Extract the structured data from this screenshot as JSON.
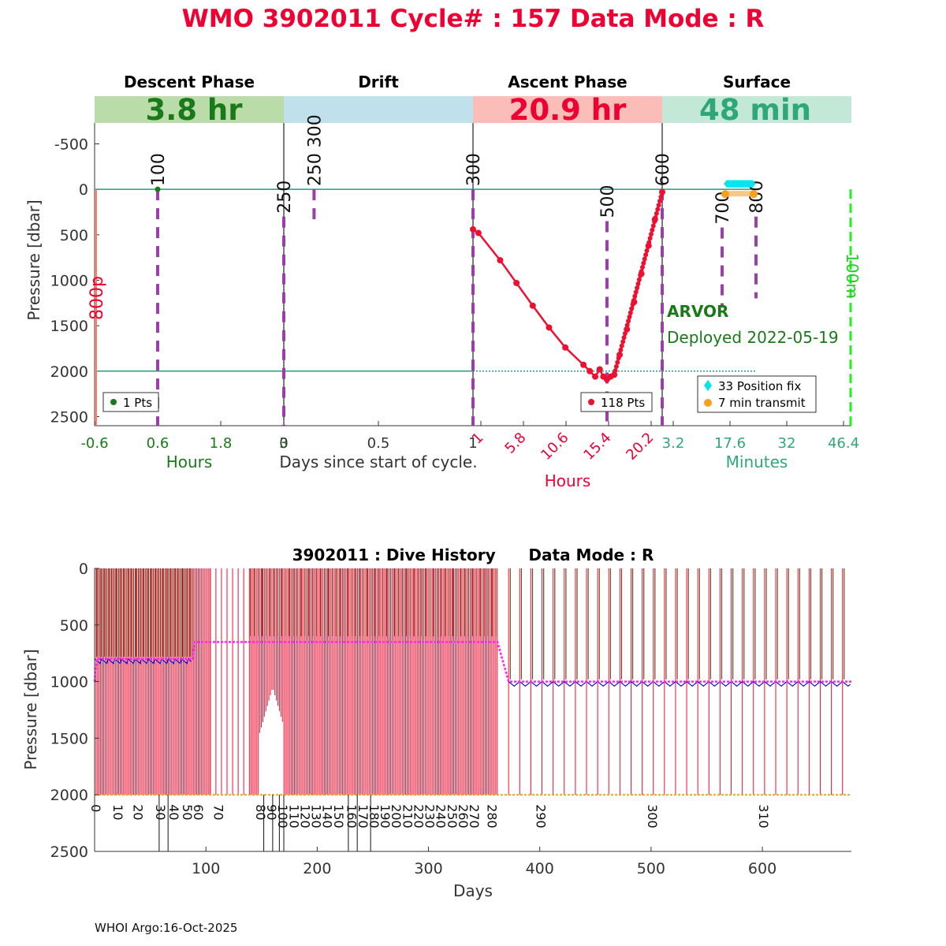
{
  "title": "WMO 3902011   Cycle# : 157   Data Mode : R",
  "colors": {
    "title": "#ee0033",
    "descent": "#1a7a1a",
    "descent_bg": "#b9dca9",
    "drift_bg": "#c0e0ec",
    "ascent": "#ee0033",
    "ascent_bg": "#fbbdb8",
    "surface": "#2ea77a",
    "surface_bg": "#c4e8d8",
    "marker": "#9a3ea8",
    "teal": "#2a9a80",
    "salmon": "#f08070",
    "cyan": "#00e5ee",
    "orange": "#f5a020",
    "green_dash": "#22ee22",
    "magenta": "#ff22ff",
    "blue": "#1010cc",
    "darkgreen": "#6a4a20",
    "red": "#ee1030"
  },
  "top_panel": {
    "ylabel": "Pressure [dbar]",
    "y_ticks": [
      "-500",
      "0",
      "500",
      "1000",
      "1500",
      "2000",
      "2500"
    ],
    "y_tick_values": [
      -500,
      0,
      500,
      1000,
      1500,
      2000,
      2500
    ],
    "ylim": [
      -730,
      2600
    ],
    "xlabel": "Days since start of cycle.",
    "vertical_label_800p": "800p",
    "vertical_label_100m": "100m",
    "phases": {
      "descent": {
        "title": "Descent Phase",
        "duration": "3.8 hr",
        "xticks": [
          "-0.6",
          "0.6",
          "1.8",
          "3"
        ],
        "xlim": [
          -0.6,
          3
        ],
        "units": "Hours",
        "legend": "1 Pts",
        "points": [
          [
            0.6,
            0
          ]
        ],
        "markers": [
          {
            "label": "100",
            "x": 0.6,
            "p_top": 0,
            "p_bottom": 2600
          }
        ]
      },
      "drift": {
        "title": "Drift",
        "xticks": [
          "0",
          "0.5",
          "1"
        ],
        "xlim": [
          0,
          1
        ],
        "markers": [
          {
            "label": "250",
            "x": 0.0,
            "p_top": 300,
            "p_bottom": 2600
          },
          {
            "label": "250 300",
            "x": 0.16,
            "p_top": 0,
            "p_bottom": 400
          }
        ]
      },
      "ascent": {
        "title": "Ascent Phase",
        "duration": "20.9 hr",
        "xticks": [
          "1",
          "5.8",
          "10.6",
          "15.4",
          "20.2"
        ],
        "xlim": [
          0,
          20.9
        ],
        "units": "Hours",
        "legend": "118 Pts",
        "points": [
          [
            0,
            440
          ],
          [
            0.6,
            480
          ],
          [
            3.0,
            780
          ],
          [
            4.8,
            1030
          ],
          [
            6.6,
            1280
          ],
          [
            8.4,
            1520
          ],
          [
            10.2,
            1740
          ],
          [
            12.2,
            1930
          ],
          [
            12.9,
            2000
          ],
          [
            13.5,
            2060
          ],
          [
            14.0,
            1980
          ],
          [
            14.4,
            2060
          ],
          [
            14.8,
            2090
          ],
          [
            15.2,
            2060
          ],
          [
            15.6,
            2040
          ],
          [
            16.2,
            1820
          ],
          [
            17.0,
            1540
          ],
          [
            17.8,
            1240
          ],
          [
            18.6,
            930
          ],
          [
            19.4,
            620
          ],
          [
            20.1,
            330
          ],
          [
            20.9,
            30
          ]
        ],
        "markers": [
          {
            "label": "300",
            "x": 0.0,
            "p_top": 0,
            "p_bottom": 2600
          },
          {
            "label": "500",
            "x": 14.8,
            "p_top": 350,
            "p_bottom": 2600
          },
          {
            "label": "600",
            "x": 20.9,
            "p_top": 0,
            "p_bottom": 2600
          }
        ]
      },
      "surface": {
        "title": "Surface",
        "duration": "48 min",
        "xticks": [
          "3.2",
          "17.6",
          "32",
          "46.4"
        ],
        "xlim": [
          0,
          48
        ],
        "units": "Minutes",
        "legend_fix": "33 Position fix",
        "legend_transmit": "7 min transmit",
        "fix_range": [
          16.0,
          23.2
        ],
        "transmit_range": [
          16.0,
          23.2
        ],
        "markers": [
          {
            "label": "700",
            "x": 15.2,
            "p_top": 420,
            "p_bottom": 1300
          },
          {
            "label": "800",
            "x": 23.8,
            "p_top": 300,
            "p_bottom": 1200
          }
        ]
      }
    },
    "arvor": "ARVOR",
    "deployed": "Deployed 2022-05-19"
  },
  "bottom_panel": {
    "title": "3902011 : Dive History      Data Mode : R",
    "ylabel": "Pressure [dbar]",
    "xlabel": "Days",
    "y_ticks": [
      "0",
      "500",
      "1000",
      "1500",
      "2000",
      "2500"
    ],
    "y_tick_values": [
      0,
      500,
      1000,
      1500,
      2000,
      2500
    ],
    "x_ticks": [
      "100",
      "200",
      "300",
      "400",
      "500",
      "600"
    ],
    "x_tick_values": [
      100,
      200,
      300,
      400,
      500,
      600
    ],
    "xlim": [
      0,
      680
    ],
    "ylim": [
      0,
      2500
    ],
    "cycle_labels": [
      "0",
      "10",
      "20",
      "30",
      "40",
      "50",
      "60",
      "70",
      "80",
      "90",
      "100",
      "110",
      "120",
      "130",
      "140",
      "150",
      "160",
      "170",
      "180",
      "190",
      "200",
      "210",
      "220",
      "230",
      "240",
      "250",
      "260",
      "270",
      "280",
      "290",
      "300",
      "310"
    ],
    "cycle_days": [
      0,
      20,
      38,
      58,
      70,
      82,
      92,
      110,
      148,
      158,
      168,
      178,
      188,
      198,
      208,
      218,
      230,
      240,
      250,
      260,
      270,
      280,
      290,
      300,
      310,
      320,
      330,
      340,
      356,
      400,
      500,
      600
    ],
    "drift_parking": [
      [
        0,
        1000
      ],
      [
        2,
        800
      ],
      [
        88,
        800
      ],
      [
        90,
        650
      ],
      [
        362,
        650
      ],
      [
        372,
        1000
      ],
      [
        680,
        1000
      ]
    ]
  },
  "footer": "WHOI Argo:16-Oct-2025"
}
